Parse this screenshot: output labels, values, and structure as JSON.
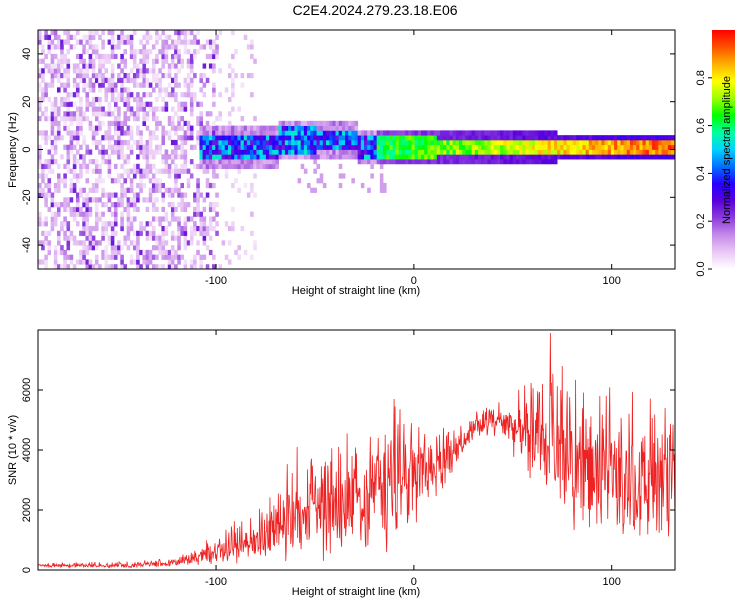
{
  "figure": {
    "title": "C2E4.2024.279.23.18.E06"
  },
  "colors": {
    "snr_line": "#ee2222",
    "colormap": [
      "#ffffff",
      "#e9c8f5",
      "#c58ae8",
      "#8a3ddc",
      "#5a00dd",
      "#2600ff",
      "#0070ff",
      "#00d2ff",
      "#00ffa0",
      "#00ff00",
      "#9cff00",
      "#ffff00",
      "#ffb000",
      "#ff5000",
      "#ff0000"
    ]
  },
  "chart_data": [
    {
      "type": "heatmap",
      "title": "",
      "xlabel": "Height of straight line (km)",
      "ylabel": "Frequency (Hz)",
      "xlim": [
        -190,
        132
      ],
      "ylim": [
        -50,
        50
      ],
      "xticks": [
        -100,
        0,
        100
      ],
      "yticks": [
        -40,
        -20,
        0,
        20,
        40
      ],
      "colorbar": {
        "label": "Normalized spectral amplitude",
        "range": [
          0,
          1
        ],
        "ticks": [
          0.0,
          0.2,
          0.4,
          0.6,
          0.8
        ]
      },
      "features": {
        "noise_region_x": [
          -190,
          -100
        ],
        "ridge": {
          "description": "narrow frequency band near 0 Hz with increasing amplitude for heights above about -20 km",
          "x_start": -110,
          "x_end": 132,
          "centre_hz": 1,
          "half_width_hz": [
            6,
            2
          ]
        }
      }
    },
    {
      "type": "line",
      "title": "",
      "xlabel": "Height of straight line (km)",
      "ylabel": "SNR (10 * v/v)",
      "xlim": [
        -190,
        132
      ],
      "ylim": [
        0,
        8000
      ],
      "xticks": [
        -100,
        0,
        100
      ],
      "yticks": [
        0,
        2000,
        4000,
        6000
      ],
      "series": [
        {
          "envelope_x": [
            -190,
            -150,
            -120,
            -100,
            -90,
            -80,
            -70,
            -62,
            -55,
            -45,
            -30,
            -15,
            -5,
            5,
            15,
            25,
            35,
            45,
            55,
            65,
            75,
            90,
            110,
            132
          ],
          "envelope_mean": [
            150,
            150,
            230,
            600,
            800,
            1000,
            1250,
            1800,
            1700,
            1900,
            2300,
            2700,
            3000,
            3300,
            3600,
            4400,
            4900,
            4900,
            4600,
            4200,
            3700,
            3200,
            3000,
            2700
          ],
          "envelope_spread": [
            80,
            90,
            130,
            450,
            700,
            800,
            1100,
            1600,
            1500,
            1700,
            2000,
            2400,
            2500,
            1600,
            1000,
            500,
            450,
            600,
            1300,
            1800,
            2200,
            2400,
            2300,
            2300
          ],
          "peaks": [
            {
              "x": -59,
              "y": 4100
            },
            {
              "x": -18,
              "y": 4400
            },
            {
              "x": -10,
              "y": 5700
            },
            {
              "x": 69,
              "y": 7900
            },
            {
              "x": 75,
              "y": 6800
            },
            {
              "x": 65,
              "y": 6200
            },
            {
              "x": 127,
              "y": 5400
            }
          ]
        }
      ]
    }
  ]
}
